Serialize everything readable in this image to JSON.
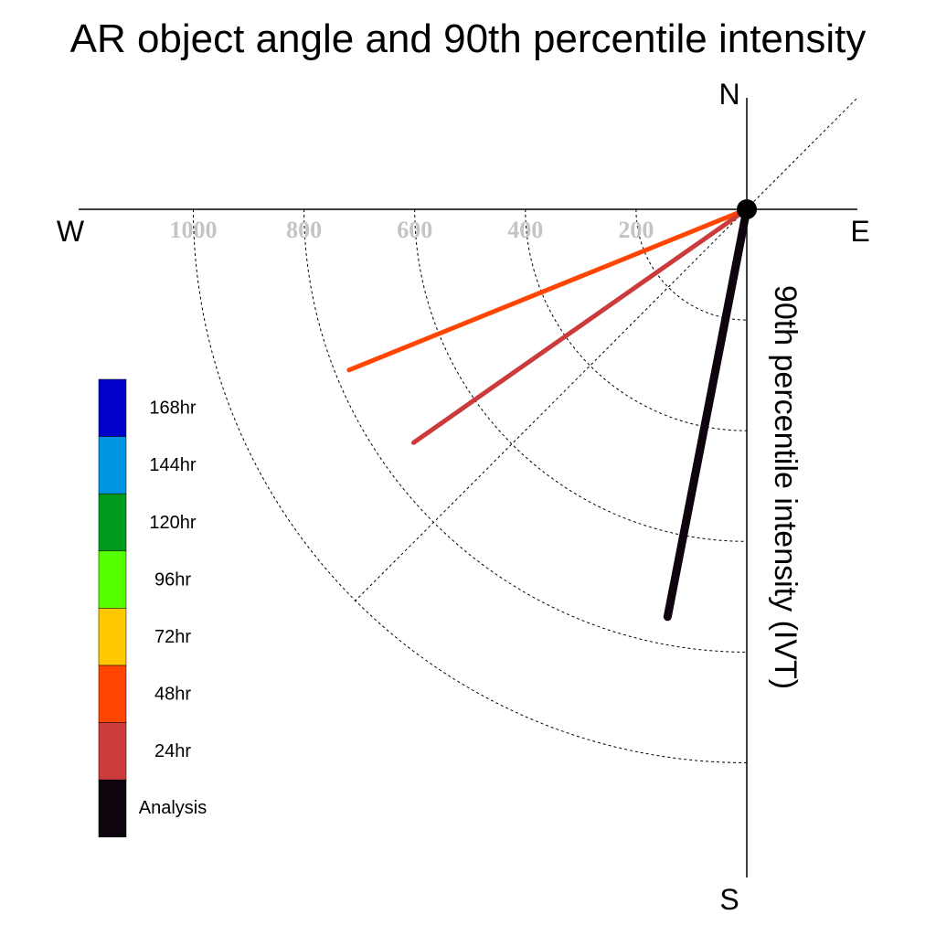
{
  "chart_data": {
    "type": "polar-line",
    "title": "AR object angle and 90th percentile intensity",
    "radial_label": "90th percentile intensity (IVT)",
    "compass": {
      "north": "N",
      "south": "S",
      "east": "E",
      "west": "W"
    },
    "radial_ticks": [
      200,
      400,
      600,
      800,
      1000
    ],
    "radial_tick_labels": [
      "200",
      "400",
      "600",
      "800",
      "1000"
    ],
    "radial_max": 1200,
    "quadrant": "south-west",
    "grid": true,
    "legend_position": "left",
    "legend": [
      {
        "label": "168hr",
        "color": "#0000c8"
      },
      {
        "label": "144hr",
        "color": "#0096e1"
      },
      {
        "label": "120hr",
        "color": "#009a1c"
      },
      {
        "label": "96hr",
        "color": "#55ff00"
      },
      {
        "label": "72hr",
        "color": "#ffc800"
      },
      {
        "label": "48hr",
        "color": "#ff4500"
      },
      {
        "label": "24hr",
        "color": "#cc3b3b"
      },
      {
        "label": "Analysis",
        "color": "#0e040e"
      }
    ],
    "series": [
      {
        "name": "48hr",
        "color": "#ff4500",
        "angle_deg": 248,
        "intensity": 775
      },
      {
        "name": "24hr",
        "color": "#cc3b3b",
        "angle_deg": 235,
        "intensity": 735
      },
      {
        "name": "Analysis",
        "color": "#0e040e",
        "angle_deg": 191,
        "intensity": 750
      }
    ]
  }
}
